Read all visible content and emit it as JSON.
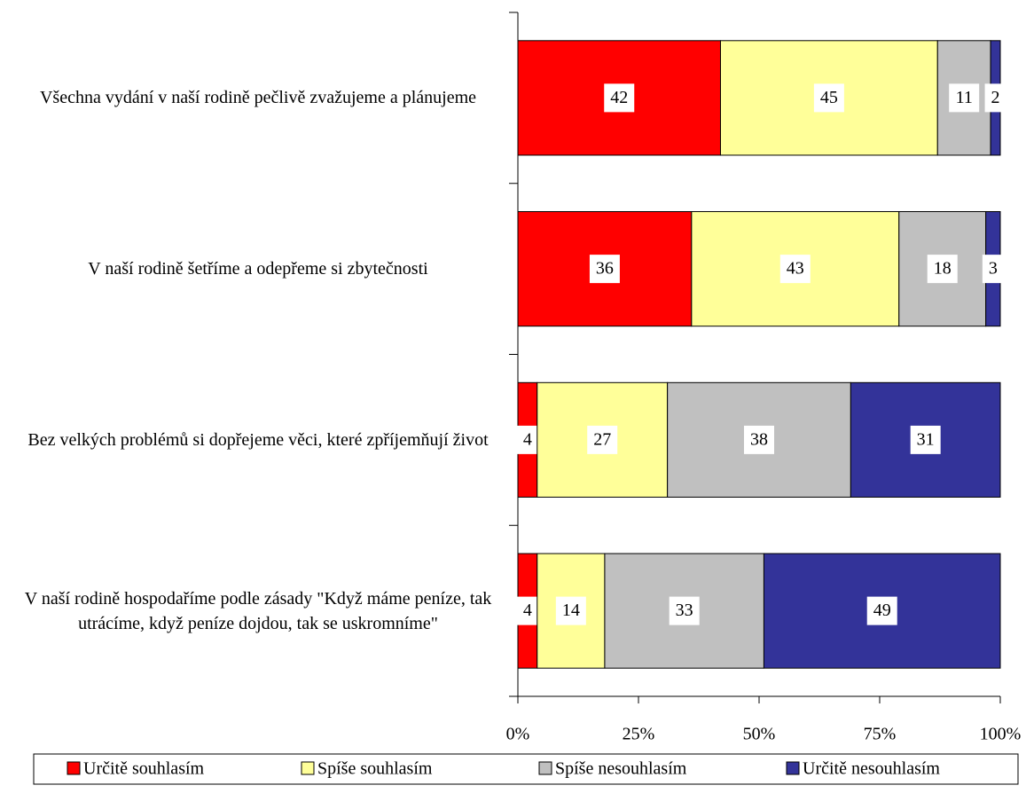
{
  "chart_data": {
    "type": "stacked-bar-horizontal",
    "categories": [
      "Všechna vydání v naší rodině pečlivě zvažujeme a plánujeme",
      "V naší rodině šetříme a odepřeme si zbytečnosti",
      "Bez velkých problémů si dopřejeme věci, které zpříjemňují život",
      "V naší rodině hospodaříme podle zásady  \"Když máme peníze, tak utrácíme, když peníze dojdou, tak se uskromníme\""
    ],
    "series": [
      {
        "name": "Určitě souhlasím",
        "color": "#ff0000",
        "values": [
          42,
          36,
          4,
          4
        ]
      },
      {
        "name": "Spíše souhlasím",
        "color": "#ffff99",
        "values": [
          45,
          43,
          27,
          14
        ]
      },
      {
        "name": "Spíše nesouhlasím",
        "color": "#c0c0c0",
        "values": [
          11,
          18,
          38,
          33
        ]
      },
      {
        "name": "Určitě nesouhlasím",
        "color": "#333399",
        "values": [
          2,
          3,
          31,
          49
        ]
      }
    ],
    "xlim": [
      0,
      100
    ],
    "xticks": [
      {
        "value": 0,
        "label": "0%"
      },
      {
        "value": 25,
        "label": "25%"
      },
      {
        "value": 50,
        "label": "50%"
      },
      {
        "value": 75,
        "label": "75%"
      },
      {
        "value": 100,
        "label": "100%"
      }
    ],
    "legend": "bottom"
  }
}
